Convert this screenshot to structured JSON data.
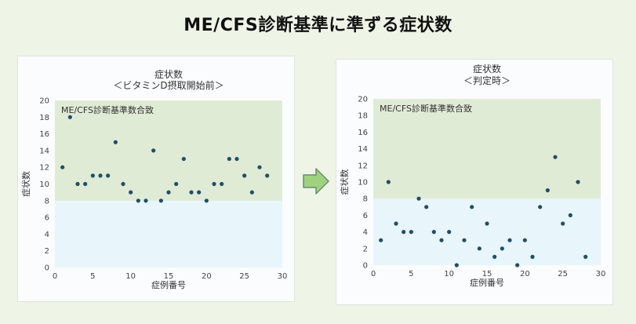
{
  "page": {
    "title": "ME/CFS診断基準に準ずる症状数"
  },
  "colors": {
    "background": "#eef4e6",
    "band": "#e0ebd6",
    "plot_bg": "#e8f5fa",
    "point": "#1f4f68",
    "arrow_fill": "#9fd27e",
    "arrow_stroke": "#6a8c78"
  },
  "chart_data": [
    {
      "type": "scatter",
      "title": "症状数",
      "subtitle": "＜ビタミンD摂取開始前＞",
      "xlabel": "症例番号",
      "ylabel": "症状数",
      "xlim": [
        0,
        30
      ],
      "ylim": [
        0,
        20
      ],
      "xticks": [
        0,
        5,
        10,
        15,
        20,
        25,
        30
      ],
      "yticks": [
        0,
        2,
        4,
        6,
        8,
        10,
        12,
        14,
        16,
        18,
        20
      ],
      "band": {
        "from": 8,
        "to": 20,
        "label": "ME/CFS診断基準数合致"
      },
      "grid": false,
      "x": [
        1,
        2,
        3,
        4,
        5,
        6,
        7,
        8,
        9,
        10,
        11,
        12,
        13,
        14,
        15,
        16,
        17,
        18,
        19,
        20,
        21,
        22,
        23,
        24,
        25,
        26,
        27,
        28
      ],
      "y": [
        12,
        18,
        10,
        10,
        11,
        11,
        11,
        15,
        10,
        9,
        8,
        8,
        14,
        8,
        9,
        10,
        13,
        9,
        9,
        8,
        10,
        10,
        13,
        13,
        11,
        9,
        12,
        11
      ]
    },
    {
      "type": "scatter",
      "title": "症状数",
      "subtitle": "＜判定時＞",
      "xlabel": "症例番号",
      "ylabel": "症状数",
      "xlim": [
        0,
        30
      ],
      "ylim": [
        0,
        20
      ],
      "xticks": [
        0,
        5,
        10,
        15,
        20,
        25,
        30
      ],
      "yticks": [
        0,
        2,
        4,
        6,
        8,
        10,
        12,
        14,
        16,
        18,
        20
      ],
      "band": {
        "from": 8,
        "to": 20,
        "label": "ME/CFS診断基準数合致"
      },
      "grid": false,
      "x": [
        1,
        2,
        3,
        4,
        5,
        6,
        7,
        8,
        9,
        10,
        11,
        12,
        13,
        14,
        15,
        16,
        17,
        18,
        19,
        20,
        21,
        22,
        23,
        24,
        25,
        26,
        27,
        28
      ],
      "y": [
        3,
        10,
        5,
        4,
        4,
        8,
        7,
        4,
        3,
        4,
        0,
        3,
        7,
        2,
        5,
        1,
        2,
        3,
        0,
        3,
        1,
        7,
        9,
        13,
        5,
        6,
        10,
        1
      ]
    }
  ]
}
